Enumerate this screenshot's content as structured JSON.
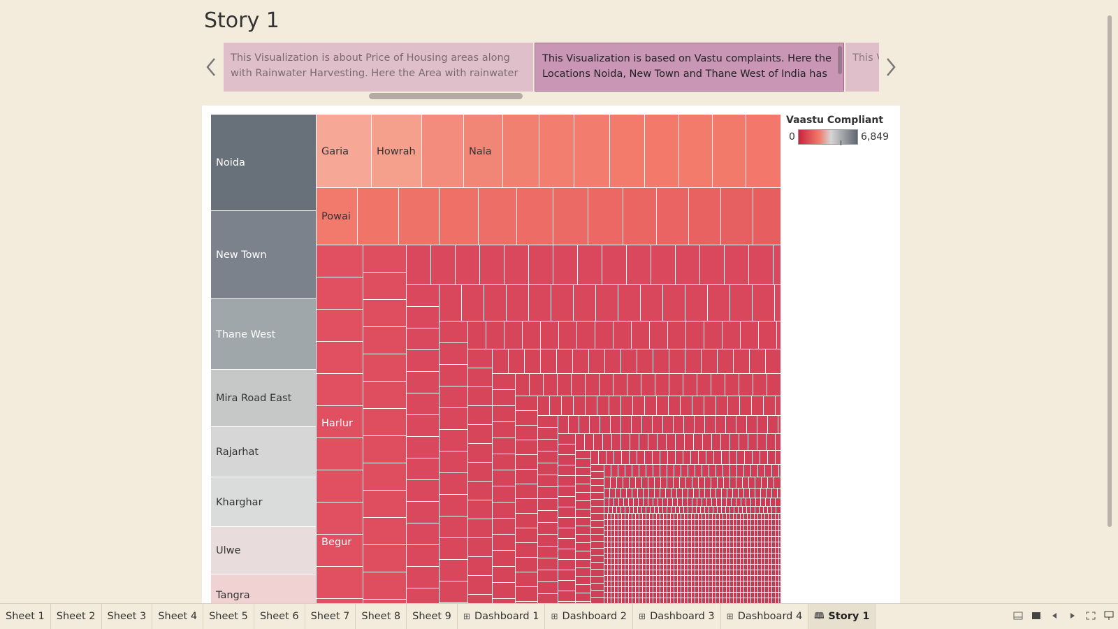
{
  "story": {
    "title": "Story 1"
  },
  "captions": [
    {
      "text": "This Visualization is about Price of Housing areas along with Rainwater Harvesting. Here the Area with rainwater"
    },
    {
      "text": "This Visualization is based on Vastu complaints. Here the Locations Noida, New Town and Thane West of India has"
    },
    {
      "text": "This V No. o"
    }
  ],
  "legend": {
    "title": "Vaastu Compliant",
    "min": "0",
    "max": "6,849"
  },
  "labels": {
    "Noida": "Noida",
    "New Town": "New Town",
    "Thane West": "Thane West",
    "Mira Road East": "Mira Road East",
    "Rajarhat": "Rajarhat",
    "Kharghar": "Kharghar",
    "Ulwe": "Ulwe",
    "Tangra": "Tangra",
    "Garia": "Garia",
    "Howrah": "Howrah",
    "Nala": "Nala",
    "Powai": "Powai",
    "Harlur": "Harlur",
    "Begur": "Begur"
  },
  "chart_data": {
    "type": "treemap",
    "measure": "Vaastu Compliant",
    "color_range": [
      0,
      6849
    ],
    "colors": [
      "#c9243f",
      "#f07a6a",
      "#d6d6d6",
      "#5f6670"
    ],
    "labeled_locations": [
      {
        "name": "Noida",
        "color": "#687079"
      },
      {
        "name": "New Town",
        "color": "#7b828b"
      },
      {
        "name": "Thane West",
        "color": "#a0a7ab"
      },
      {
        "name": "Mira Road East",
        "color": "#c6c8c8"
      },
      {
        "name": "Rajarhat",
        "color": "#d6d6d6"
      },
      {
        "name": "Kharghar",
        "color": "#dadbdb"
      },
      {
        "name": "Ulwe",
        "color": "#e8dcdc"
      },
      {
        "name": "Tangra",
        "color": "#f0d2d2"
      },
      {
        "name": "Garia",
        "color": "#f6a796"
      },
      {
        "name": "Howrah",
        "color": "#f59f8d"
      },
      {
        "name": "Nala",
        "color": "#f38c7c"
      },
      {
        "name": "Powai",
        "color": "#f27a6c"
      },
      {
        "name": "Harlur",
        "color": "#e05060"
      },
      {
        "name": "Begur",
        "color": "#e04e5f"
      }
    ]
  },
  "tabs": [
    {
      "label": "Sheet 1",
      "kind": "sheet"
    },
    {
      "label": "Sheet 2",
      "kind": "sheet"
    },
    {
      "label": "Sheet 3",
      "kind": "sheet"
    },
    {
      "label": "Sheet 4",
      "kind": "sheet"
    },
    {
      "label": "Sheet 5",
      "kind": "sheet"
    },
    {
      "label": "Sheet 6",
      "kind": "sheet"
    },
    {
      "label": "Sheet 7",
      "kind": "sheet"
    },
    {
      "label": "Sheet 8",
      "kind": "sheet"
    },
    {
      "label": "Sheet 9",
      "kind": "sheet"
    },
    {
      "label": "Dashboard 1",
      "kind": "dashboard"
    },
    {
      "label": "Dashboard 2",
      "kind": "dashboard"
    },
    {
      "label": "Dashboard 3",
      "kind": "dashboard"
    },
    {
      "label": "Dashboard 4",
      "kind": "dashboard"
    },
    {
      "label": "Story 1",
      "kind": "story",
      "active": true
    }
  ]
}
